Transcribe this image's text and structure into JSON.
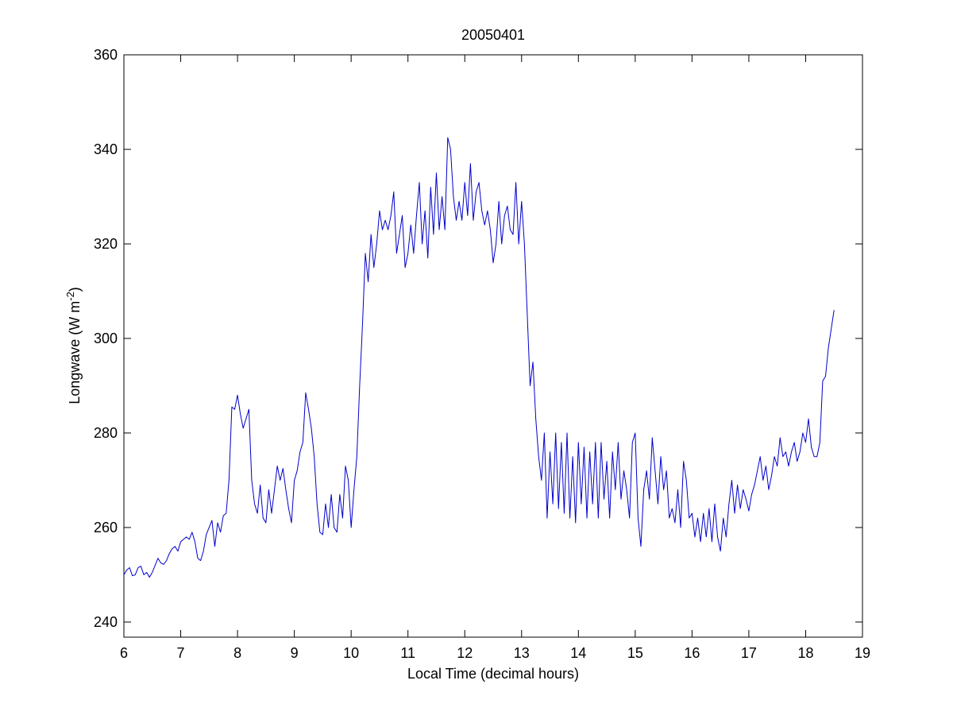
{
  "chart_data": {
    "type": "line",
    "title": "20050401",
    "xlabel": "Local Time (decimal hours)",
    "ylabel": [
      "Longwave (W m",
      "-2",
      ")"
    ],
    "xlim": [
      6,
      19
    ],
    "ylim": [
      236.8,
      360
    ],
    "xticks": [
      6,
      7,
      8,
      9,
      10,
      11,
      12,
      13,
      14,
      15,
      16,
      17,
      18,
      19
    ],
    "yticks": [
      240,
      260,
      280,
      300,
      320,
      340,
      360
    ],
    "grid": false,
    "x": [
      6.0,
      6.05,
      6.1,
      6.15,
      6.2,
      6.25,
      6.3,
      6.35,
      6.4,
      6.45,
      6.5,
      6.55,
      6.6,
      6.65,
      6.7,
      6.75,
      6.8,
      6.85,
      6.9,
      6.95,
      7.0,
      7.05,
      7.1,
      7.15,
      7.2,
      7.25,
      7.3,
      7.35,
      7.4,
      7.45,
      7.5,
      7.55,
      7.6,
      7.65,
      7.7,
      7.75,
      7.8,
      7.85,
      7.9,
      7.95,
      8.0,
      8.05,
      8.1,
      8.15,
      8.2,
      8.25,
      8.3,
      8.35,
      8.4,
      8.45,
      8.5,
      8.55,
      8.6,
      8.65,
      8.7,
      8.75,
      8.8,
      8.85,
      8.9,
      8.95,
      9.0,
      9.05,
      9.1,
      9.15,
      9.2,
      9.25,
      9.3,
      9.35,
      9.4,
      9.45,
      9.5,
      9.55,
      9.6,
      9.65,
      9.7,
      9.75,
      9.8,
      9.85,
      9.9,
      9.95,
      10.0,
      10.05,
      10.1,
      10.15,
      10.2,
      10.25,
      10.3,
      10.35,
      10.4,
      10.45,
      10.5,
      10.55,
      10.6,
      10.65,
      10.7,
      10.75,
      10.8,
      10.85,
      10.9,
      10.95,
      11.0,
      11.05,
      11.1,
      11.15,
      11.2,
      11.25,
      11.3,
      11.35,
      11.4,
      11.45,
      11.5,
      11.55,
      11.6,
      11.65,
      11.7,
      11.75,
      11.8,
      11.85,
      11.9,
      11.95,
      12.0,
      12.05,
      12.1,
      12.15,
      12.2,
      12.25,
      12.3,
      12.35,
      12.4,
      12.45,
      12.5,
      12.55,
      12.6,
      12.65,
      12.7,
      12.75,
      12.8,
      12.85,
      12.9,
      12.95,
      13.0,
      13.05,
      13.1,
      13.15,
      13.2,
      13.25,
      13.3,
      13.35,
      13.4,
      13.45,
      13.5,
      13.55,
      13.6,
      13.65,
      13.7,
      13.75,
      13.8,
      13.85,
      13.9,
      13.95,
      14.0,
      14.05,
      14.1,
      14.15,
      14.2,
      14.25,
      14.3,
      14.35,
      14.4,
      14.45,
      14.5,
      14.55,
      14.6,
      14.65,
      14.7,
      14.75,
      14.8,
      14.85,
      14.9,
      14.95,
      15.0,
      15.05,
      15.1,
      15.15,
      15.2,
      15.25,
      15.3,
      15.35,
      15.4,
      15.45,
      15.5,
      15.55,
      15.6,
      15.65,
      15.7,
      15.75,
      15.8,
      15.85,
      15.9,
      15.95,
      16.0,
      16.05,
      16.1,
      16.15,
      16.2,
      16.25,
      16.3,
      16.35,
      16.4,
      16.45,
      16.5,
      16.55,
      16.6,
      16.65,
      16.7,
      16.75,
      16.8,
      16.85,
      16.9,
      16.95,
      17.0,
      17.05,
      17.1,
      17.15,
      17.2,
      17.25,
      17.3,
      17.35,
      17.4,
      17.45,
      17.5,
      17.55,
      17.6,
      17.65,
      17.7,
      17.75,
      17.8,
      17.85,
      17.9,
      17.95,
      18.0,
      18.05,
      18.1,
      18.15,
      18.2,
      18.25,
      18.3,
      18.35,
      18.4,
      18.45,
      18.5
    ],
    "series": [
      {
        "color": "#0000cc",
        "values": [
          250,
          251,
          251.5,
          249.8,
          250,
          251.5,
          251.8,
          250,
          250.5,
          249.5,
          250.5,
          252,
          253.5,
          252.5,
          252.2,
          253,
          254.5,
          255.5,
          256,
          255,
          257,
          257.5,
          258,
          257.5,
          259,
          257,
          253.5,
          253,
          255,
          258.5,
          260,
          261.5,
          256,
          261,
          259,
          262.5,
          263,
          270,
          285.5,
          285,
          288,
          284,
          281,
          283,
          285,
          270,
          265,
          263,
          269,
          262,
          261,
          268,
          263,
          268,
          273,
          270,
          272.5,
          268,
          264,
          261,
          270,
          272,
          276,
          278,
          288.5,
          285,
          281,
          275,
          265,
          259,
          258.5,
          265,
          260,
          267,
          260,
          259,
          267,
          262,
          273,
          270,
          260,
          268,
          275,
          290,
          303,
          318,
          312,
          322,
          315,
          320,
          327,
          323,
          325,
          323,
          326,
          331,
          318,
          322,
          326,
          315,
          318,
          324,
          318,
          326,
          333,
          320,
          327,
          317,
          332,
          322,
          335,
          323,
          330,
          323,
          342.5,
          340,
          330,
          325,
          329,
          325,
          333,
          326,
          337,
          325,
          331,
          333,
          327,
          324,
          327,
          323,
          316,
          320,
          329,
          320,
          326,
          328,
          323,
          322,
          333,
          320,
          329,
          320,
          305,
          290,
          295,
          283,
          275,
          270,
          280,
          262,
          276,
          265,
          280,
          264,
          278,
          263,
          280,
          262,
          275,
          261,
          278,
          265,
          277,
          262,
          276,
          265,
          278,
          262,
          278,
          266,
          274,
          262,
          276,
          268,
          278,
          266,
          272,
          268,
          262,
          278,
          280,
          262,
          256,
          268,
          272,
          266,
          279,
          272,
          265,
          275,
          268,
          272,
          262,
          264,
          261,
          268,
          260,
          274,
          270,
          262,
          263,
          258,
          262,
          257,
          263,
          258,
          264,
          257,
          265,
          258,
          255,
          262,
          258,
          265,
          270,
          263,
          269,
          264,
          268,
          266,
          263.5,
          267,
          269,
          272,
          275,
          270,
          273,
          268,
          271,
          275,
          273,
          279,
          275,
          276,
          273,
          276,
          278,
          274,
          276,
          280,
          278,
          283,
          277,
          275,
          275,
          278,
          291,
          292,
          298,
          302,
          306
        ]
      }
    ]
  }
}
